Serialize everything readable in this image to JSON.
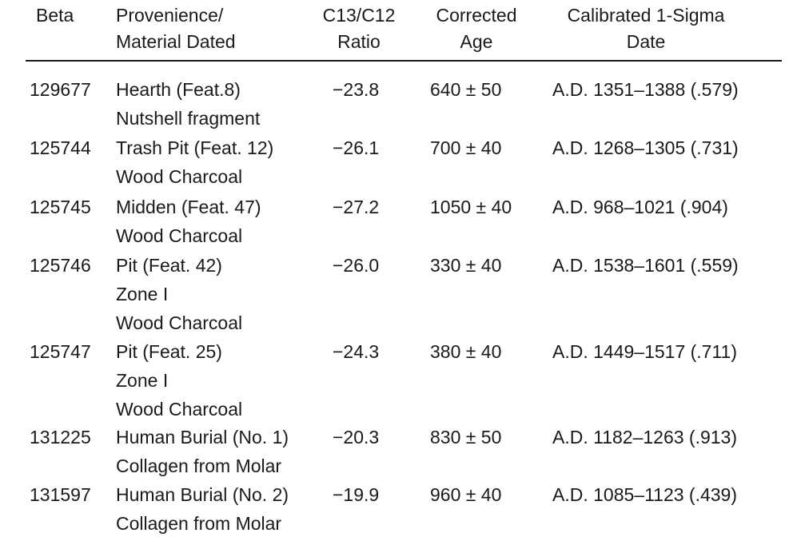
{
  "table": {
    "headers": {
      "beta": [
        "Beta"
      ],
      "provenience": [
        "Provenience/",
        "Material Dated"
      ],
      "ratio": [
        "C13/C12",
        "Ratio"
      ],
      "age": [
        "Corrected",
        "Age"
      ],
      "date": [
        "Calibrated 1-Sigma",
        "Date"
      ]
    },
    "rows": [
      {
        "beta": "129677",
        "provenience": [
          "Hearth (Feat.8)",
          "Nutshell fragment"
        ],
        "ratio": "−23.8",
        "age": "640 ± 50",
        "date": "A.D. 1351–1388 (.579)"
      },
      {
        "beta": "125744",
        "provenience": [
          "Trash Pit (Feat. 12)",
          "Wood Charcoal"
        ],
        "ratio": "−26.1",
        "age": "700 ± 40",
        "date": "A.D. 1268–1305 (.731)"
      },
      {
        "beta": "125745",
        "provenience": [
          "Midden (Feat. 47)",
          "Wood Charcoal"
        ],
        "ratio": "−27.2",
        "age": "1050 ± 40",
        "date": "A.D. 968–1021 (.904)"
      },
      {
        "beta": "125746",
        "provenience": [
          "Pit (Feat. 42)",
          "Zone I",
          "Wood Charcoal"
        ],
        "ratio": "−26.0",
        "age": "330 ± 40",
        "date": "A.D. 1538–1601 (.559)"
      },
      {
        "beta": "125747",
        "provenience": [
          "Pit (Feat. 25)",
          "Zone I",
          "Wood Charcoal"
        ],
        "ratio": "−24.3",
        "age": "380 ± 40",
        "date": "A.D. 1449–1517 (.711)"
      },
      {
        "beta": "131225",
        "provenience": [
          "Human Burial (No. 1)",
          "Collagen from Molar"
        ],
        "ratio": "−20.3",
        "age": "830 ± 50",
        "date": "A.D. 1182–1263 (.913)"
      },
      {
        "beta": "131597",
        "provenience": [
          "Human Burial (No. 2)",
          "Collagen from  Molar"
        ],
        "ratio": "−19.9",
        "age": "960 ± 40",
        "date": "A.D. 1085–1123 (.439)"
      }
    ]
  }
}
